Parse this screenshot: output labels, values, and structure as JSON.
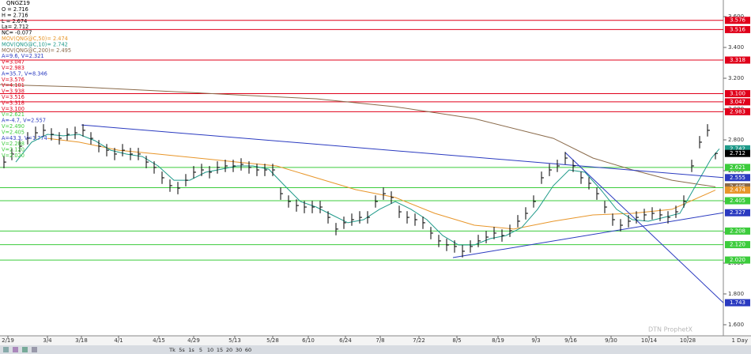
{
  "chart_data": {
    "type": "ohlc",
    "symbol": "QNGZ19",
    "legend": [
      {
        "text": "O = 2.716",
        "color": "#000000"
      },
      {
        "text": "H = 2.716",
        "color": "#000000"
      },
      {
        "text": "L = 2.674",
        "color": "#000000"
      },
      {
        "text": "La= 2.712",
        "color": "#000000"
      },
      {
        "text": "NC= -0.077",
        "color": "#000000"
      },
      {
        "text": "MOV(QNG@C,50)= 2.474",
        "color": "#e8962a"
      },
      {
        "text": "MOV(QNG@C,10)= 2.742",
        "color": "#1f9a8a"
      },
      {
        "text": "MOV(QNG@C,200)= 2.495",
        "color": "#8a6a4a"
      },
      {
        "text": "A=9.6, V=2.321",
        "color": "#2a3ac0"
      },
      {
        "text": "V=3.047",
        "color": "#e0001a"
      },
      {
        "text": "V=2.983",
        "color": "#e0001a"
      },
      {
        "text": "A=35.7, V=8.346",
        "color": "#2a3ac0"
      },
      {
        "text": "V=3.576",
        "color": "#e0001a"
      },
      {
        "text": "V=4.101",
        "color": "#e0001a"
      },
      {
        "text": "V=3.938",
        "color": "#e0001a"
      },
      {
        "text": "V=3.516",
        "color": "#e0001a"
      },
      {
        "text": "V=3.318",
        "color": "#e0001a"
      },
      {
        "text": "V=3.100",
        "color": "#e0001a"
      },
      {
        "text": "V=2.621",
        "color": "#3ccc3c"
      },
      {
        "text": "A=-4.7, V=2.557",
        "color": "#2a3ac0"
      },
      {
        "text": "V=2.490",
        "color": "#3ccc3c"
      },
      {
        "text": "V=2.405",
        "color": "#3ccc3c"
      },
      {
        "text": "A=43.3, V=1.774",
        "color": "#2a3ac0"
      },
      {
        "text": "V=2.208",
        "color": "#3ccc3c"
      },
      {
        "text": "V=2.120",
        "color": "#3ccc3c"
      },
      {
        "text": "V=2.020",
        "color": "#3ccc3c"
      }
    ],
    "x": [
      1,
      3,
      5,
      7,
      9,
      11,
      13,
      15,
      17,
      19,
      21,
      23,
      25,
      27,
      29,
      31,
      33,
      35,
      37,
      39,
      41,
      43,
      45,
      47,
      49,
      51,
      53,
      55,
      57,
      59,
      61,
      63,
      65,
      67,
      69,
      71,
      73,
      75,
      77,
      79,
      81,
      83,
      85,
      87,
      89,
      91,
      93,
      95,
      97,
      99,
      101,
      103,
      105,
      107,
      109,
      111,
      113,
      115,
      117,
      119,
      121,
      123,
      125,
      127,
      129,
      131,
      133,
      135,
      137,
      139,
      141,
      143,
      145,
      147,
      149,
      151,
      153,
      155,
      157,
      159,
      161,
      163,
      165,
      167,
      169,
      171,
      173,
      175,
      177,
      179,
      181
    ],
    "high": [
      2.696,
      2.748,
      2.799,
      2.85,
      2.886,
      2.902,
      2.876,
      2.85,
      2.876,
      2.886,
      2.902,
      2.85,
      2.799,
      2.773,
      2.748,
      2.773,
      2.748,
      2.748,
      2.696,
      2.661,
      2.594,
      2.543,
      2.527,
      2.578,
      2.63,
      2.645,
      2.63,
      2.661,
      2.671,
      2.671,
      2.681,
      2.661,
      2.645,
      2.645,
      2.645,
      2.491,
      2.44,
      2.414,
      2.404,
      2.404,
      2.404,
      2.337,
      2.261,
      2.302,
      2.322,
      2.337,
      2.337,
      2.44,
      2.491,
      2.466,
      2.373,
      2.337,
      2.322,
      2.302,
      2.235,
      2.184,
      2.158,
      2.148,
      2.117,
      2.148,
      2.184,
      2.209,
      2.235,
      2.219,
      2.25,
      2.312,
      2.363,
      2.44,
      2.594,
      2.645,
      2.671,
      2.722,
      2.671,
      2.594,
      2.558,
      2.491,
      2.404,
      2.322,
      2.286,
      2.312,
      2.337,
      2.353,
      2.363,
      2.353,
      2.337,
      2.373,
      2.44,
      2.671,
      2.825,
      2.902,
      2.716
    ],
    "low": [
      2.616,
      2.668,
      2.719,
      2.77,
      2.806,
      2.822,
      2.796,
      2.77,
      2.796,
      2.806,
      2.822,
      2.77,
      2.719,
      2.693,
      2.668,
      2.693,
      2.668,
      2.668,
      2.616,
      2.581,
      2.514,
      2.463,
      2.447,
      2.498,
      2.55,
      2.565,
      2.55,
      2.581,
      2.591,
      2.591,
      2.601,
      2.581,
      2.565,
      2.565,
      2.565,
      2.411,
      2.36,
      2.334,
      2.324,
      2.324,
      2.324,
      2.257,
      2.181,
      2.222,
      2.242,
      2.257,
      2.257,
      2.36,
      2.411,
      2.386,
      2.293,
      2.257,
      2.242,
      2.222,
      2.155,
      2.104,
      2.078,
      2.068,
      2.037,
      2.068,
      2.104,
      2.129,
      2.155,
      2.139,
      2.17,
      2.232,
      2.283,
      2.36,
      2.514,
      2.565,
      2.591,
      2.642,
      2.591,
      2.514,
      2.478,
      2.411,
      2.324,
      2.242,
      2.206,
      2.232,
      2.257,
      2.273,
      2.283,
      2.273,
      2.257,
      2.293,
      2.36,
      2.591,
      2.745,
      2.822,
      2.674
    ],
    "close": [
      2.656,
      2.708,
      2.759,
      2.81,
      2.846,
      2.862,
      2.836,
      2.81,
      2.836,
      2.846,
      2.862,
      2.81,
      2.759,
      2.733,
      2.708,
      2.733,
      2.708,
      2.708,
      2.656,
      2.621,
      2.554,
      2.503,
      2.487,
      2.538,
      2.59,
      2.605,
      2.59,
      2.621,
      2.631,
      2.631,
      2.641,
      2.621,
      2.605,
      2.605,
      2.605,
      2.451,
      2.4,
      2.374,
      2.364,
      2.364,
      2.364,
      2.297,
      2.221,
      2.262,
      2.282,
      2.297,
      2.297,
      2.4,
      2.451,
      2.426,
      2.333,
      2.297,
      2.282,
      2.262,
      2.195,
      2.144,
      2.118,
      2.108,
      2.077,
      2.108,
      2.144,
      2.169,
      2.195,
      2.179,
      2.21,
      2.272,
      2.323,
      2.4,
      2.554,
      2.605,
      2.631,
      2.682,
      2.631,
      2.554,
      2.518,
      2.451,
      2.364,
      2.282,
      2.246,
      2.272,
      2.297,
      2.313,
      2.323,
      2.313,
      2.297,
      2.333,
      2.4,
      2.631,
      2.785,
      2.862,
      2.712
    ],
    "close_color": "#000000",
    "last_label": "2.712",
    "series": [
      {
        "name": "MOV(QNG@C,200)",
        "color": "#8a6a4a",
        "value_label": "2.495",
        "x": [
          0,
          20,
          40,
          60,
          80,
          100,
          120,
          140,
          150,
          160,
          170,
          181
        ],
        "values": [
          3.159,
          3.144,
          3.118,
          3.092,
          3.067,
          3.015,
          2.938,
          2.81,
          2.682,
          2.605,
          2.538,
          2.495
        ]
      },
      {
        "name": "MOV(QNG@C,50)",
        "color": "#e8962a",
        "value_label": "2.474",
        "x": [
          12,
          20,
          30,
          40,
          50,
          60,
          70,
          80,
          90,
          100,
          110,
          120,
          130,
          140,
          150,
          160,
          170,
          181
        ],
        "values": [
          2.81,
          2.785,
          2.733,
          2.708,
          2.682,
          2.656,
          2.631,
          2.554,
          2.477,
          2.426,
          2.323,
          2.246,
          2.221,
          2.272,
          2.313,
          2.323,
          2.349,
          2.474
        ]
      },
      {
        "name": "MOV(QNG@C,10)",
        "color": "#1f9a8a",
        "value_label": "2.742",
        "x": [
          4,
          8,
          12,
          16,
          20,
          24,
          28,
          32,
          36,
          40,
          44,
          48,
          52,
          56,
          60,
          64,
          68,
          72,
          76,
          80,
          84,
          88,
          92,
          96,
          100,
          104,
          108,
          112,
          116,
          120,
          124,
          128,
          132,
          136,
          140,
          144,
          148,
          152,
          156,
          160,
          164,
          168,
          172,
          176,
          180,
          182
        ],
        "values": [
          2.656,
          2.785,
          2.836,
          2.826,
          2.836,
          2.795,
          2.733,
          2.708,
          2.692,
          2.631,
          2.538,
          2.538,
          2.59,
          2.61,
          2.631,
          2.631,
          2.61,
          2.503,
          2.4,
          2.364,
          2.313,
          2.262,
          2.282,
          2.349,
          2.4,
          2.349,
          2.282,
          2.179,
          2.118,
          2.118,
          2.159,
          2.179,
          2.231,
          2.349,
          2.503,
          2.605,
          2.59,
          2.477,
          2.349,
          2.282,
          2.272,
          2.297,
          2.323,
          2.503,
          2.682,
          2.742
        ]
      }
    ],
    "trendlines": [
      {
        "color": "#2a3ac0",
        "value_label": "2.555",
        "x": [
          20.6,
          183
        ],
        "values": [
          2.897,
          2.555
        ]
      },
      {
        "color": "#2a3ac0",
        "value_label": "2.327",
        "x": [
          114.6,
          183
        ],
        "values": [
          2.036,
          2.327
        ]
      },
      {
        "color": "#2a3ac0",
        "value_label": "1.743",
        "x": [
          143,
          183
        ],
        "values": [
          2.718,
          1.743
        ]
      }
    ],
    "levels": [
      {
        "value": 3.576,
        "label": "3.576",
        "color": "#e0001a"
      },
      {
        "value": 3.516,
        "label": "3.516",
        "color": "#e0001a"
      },
      {
        "value": 3.318,
        "label": "3.318",
        "color": "#e0001a"
      },
      {
        "value": 3.1,
        "label": "3.100",
        "color": "#e0001a"
      },
      {
        "value": 3.047,
        "label": "3.047",
        "color": "#e0001a"
      },
      {
        "value": 2.983,
        "label": "2.983",
        "color": "#e0001a"
      },
      {
        "value": 2.621,
        "label": "2.621",
        "color": "#3ccc3c"
      },
      {
        "value": 2.49,
        "label": "2.490",
        "color": "#3ccc3c"
      },
      {
        "value": 2.405,
        "label": "2.405",
        "color": "#3ccc3c"
      },
      {
        "value": 2.208,
        "label": "2.208",
        "color": "#3ccc3c"
      },
      {
        "value": 2.12,
        "label": "2.120",
        "color": "#3ccc3c"
      },
      {
        "value": 2.02,
        "label": "2.020",
        "color": "#3ccc3c"
      }
    ],
    "xlim": [
      0,
      183
    ],
    "xticks": [
      {
        "value": 2,
        "label": "2/19"
      },
      {
        "value": 12,
        "label": "3/4"
      },
      {
        "value": 20.6,
        "label": "3/18"
      },
      {
        "value": 30,
        "label": "4/1"
      },
      {
        "value": 40.2,
        "label": "4/15"
      },
      {
        "value": 49,
        "label": "4/29"
      },
      {
        "value": 59.4,
        "label": "5/13"
      },
      {
        "value": 69,
        "label": "5/28"
      },
      {
        "value": 78,
        "label": "6/10"
      },
      {
        "value": 87.4,
        "label": "6/24"
      },
      {
        "value": 96.2,
        "label": "7/8"
      },
      {
        "value": 106,
        "label": "7/22"
      },
      {
        "value": 115.6,
        "label": "8/5"
      },
      {
        "value": 126,
        "label": "8/19"
      },
      {
        "value": 135.6,
        "label": "9/3"
      },
      {
        "value": 144.4,
        "label": "9/16"
      },
      {
        "value": 154.6,
        "label": "9/30"
      },
      {
        "value": 164.2,
        "label": "10/14"
      },
      {
        "value": 174,
        "label": "10/28"
      }
    ],
    "ylim": [
      1.528,
      3.708
    ],
    "yticks": [
      {
        "value": 1.6,
        "label": "1.600"
      },
      {
        "value": 1.8,
        "label": "1.800"
      },
      {
        "value": 2.0,
        "label": "2.000"
      },
      {
        "value": 2.2,
        "label": "2.200"
      },
      {
        "value": 2.4,
        "label": "2.400"
      },
      {
        "value": 2.6,
        "label": "2.600"
      },
      {
        "value": 2.8,
        "label": "2.800"
      },
      {
        "value": 3.0,
        "label": "3.000"
      },
      {
        "value": 3.2,
        "label": "3.200"
      },
      {
        "value": 3.4,
        "label": "3.400"
      },
      {
        "value": 3.6,
        "label": "3.600"
      }
    ],
    "interval_label": "1 Day",
    "watermark": "DTN ProphetX"
  },
  "toolbar": {
    "items": [
      "Tk",
      "5s",
      "1s",
      "5",
      "10",
      "15",
      "20",
      "30",
      "60"
    ]
  }
}
